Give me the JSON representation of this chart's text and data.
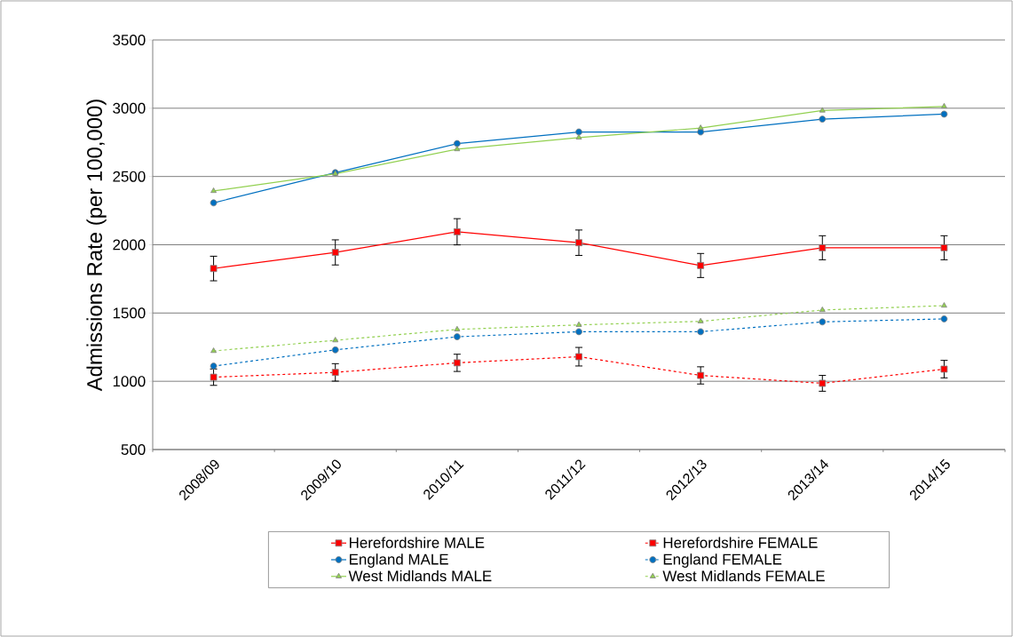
{
  "chart_data": {
    "type": "line",
    "ylabel": "Admissions Rate  (per 100,000)",
    "categories": [
      "2008/09",
      "2009/10",
      "2010/11",
      "2011/12",
      "2012/13",
      "2013/14",
      "2014/15"
    ],
    "ylim": [
      500,
      3500
    ],
    "yticks": [
      500,
      1000,
      1500,
      2000,
      2500,
      3000,
      3500
    ],
    "grid": "y",
    "legend": "bottom",
    "series": [
      {
        "name": "Herefordshire MALE",
        "color": "#ff0000",
        "marker": "square",
        "line_style": "solid",
        "values": [
          1826,
          1944,
          2095,
          2015,
          1848,
          1978,
          1978
        ],
        "errors": [
          90,
          92,
          96,
          93,
          88,
          88,
          88
        ]
      },
      {
        "name": "Herefordshire FEMALE",
        "color": "#ff0000",
        "marker": "square",
        "line_style": "dashed",
        "values": [
          1030,
          1065,
          1135,
          1180,
          1043,
          985,
          1089
        ],
        "errors": [
          60,
          64,
          63,
          68,
          63,
          58,
          64
        ]
      },
      {
        "name": "England MALE",
        "color": "#0070c0",
        "marker": "circle",
        "line_style": "solid",
        "values": [
          2307,
          2528,
          2741,
          2826,
          2826,
          2920,
          2957
        ]
      },
      {
        "name": "England FEMALE",
        "color": "#0070c0",
        "marker": "circle",
        "line_style": "dashed",
        "values": [
          1111,
          1230,
          1326,
          1363,
          1363,
          1435,
          1457
        ]
      },
      {
        "name": "West Midlands MALE",
        "color": "#92d050",
        "marker": "triangle",
        "line_style": "solid",
        "values": [
          2394,
          2520,
          2700,
          2785,
          2855,
          2983,
          3013
        ]
      },
      {
        "name": "West Midlands FEMALE",
        "color": "#92d050",
        "marker": "triangle",
        "line_style": "dashed",
        "values": [
          1222,
          1300,
          1380,
          1413,
          1439,
          1522,
          1554
        ]
      }
    ]
  }
}
